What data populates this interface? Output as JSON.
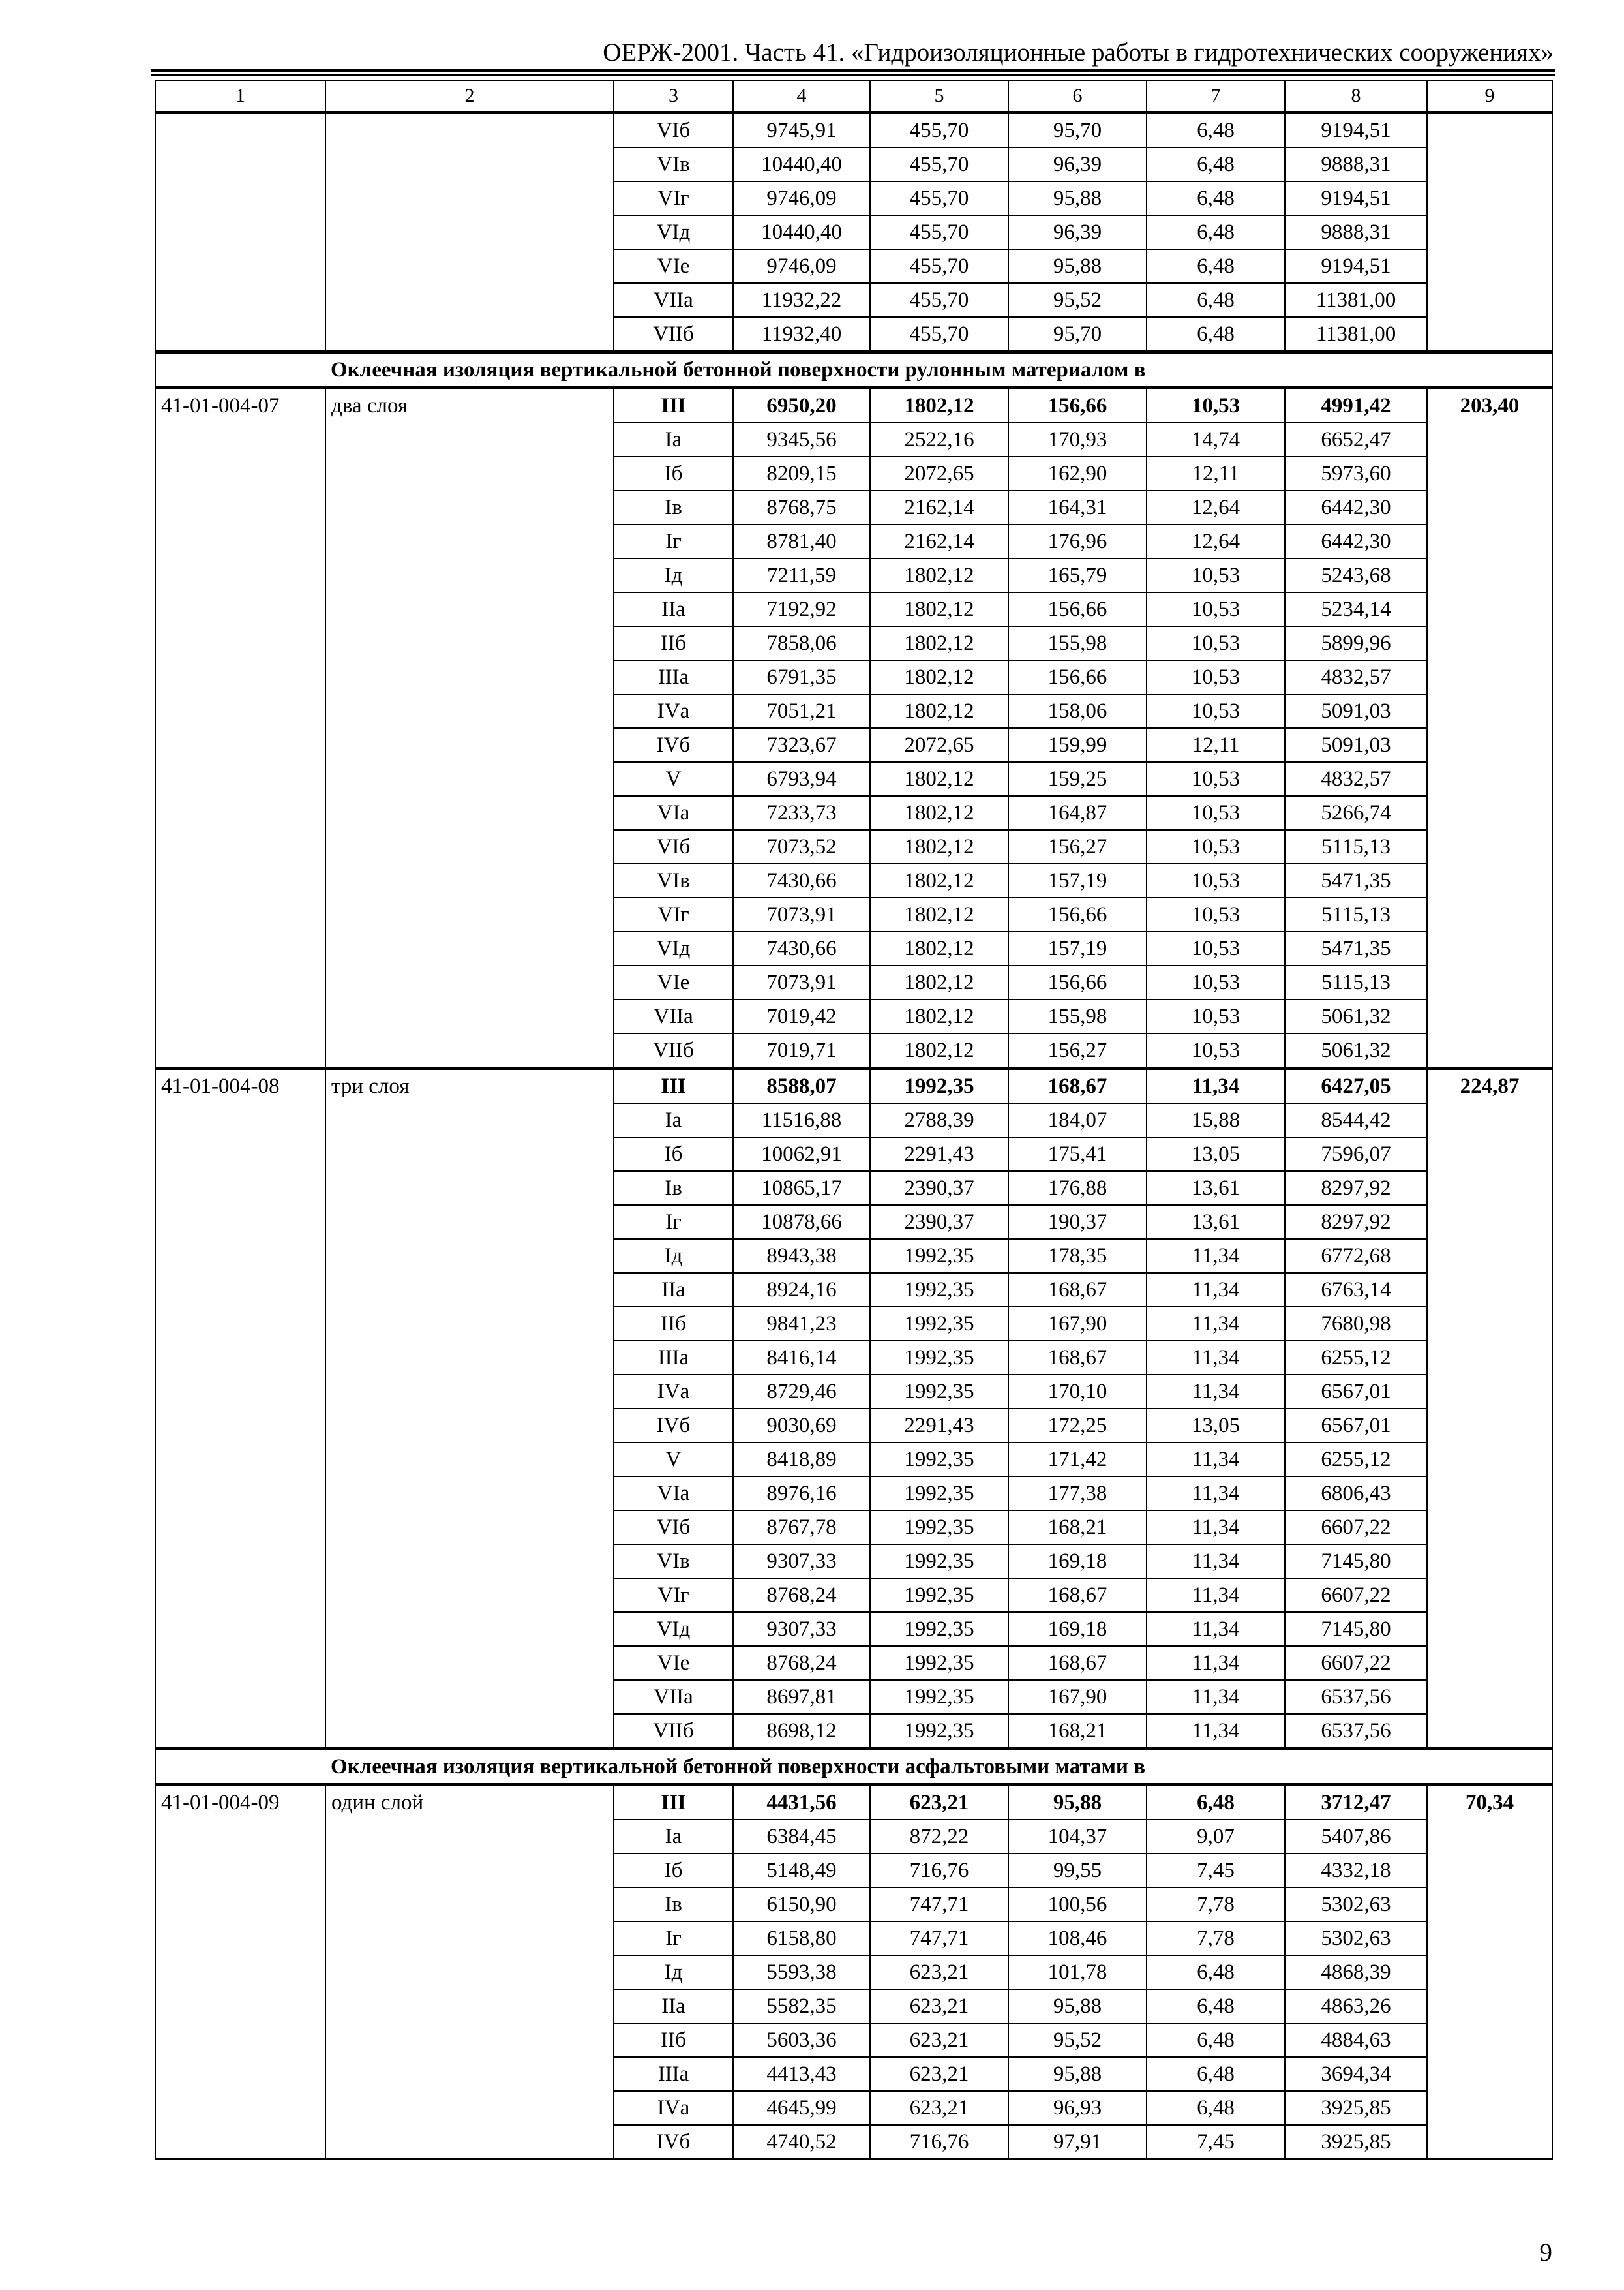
{
  "header": {
    "title": "ОЕРЖ-2001. Часть 41. «Гидроизоляционные работы в гидротехнических сооружениях»"
  },
  "table": {
    "columns": [
      "1",
      "2",
      "3",
      "4",
      "5",
      "6",
      "7",
      "8",
      "9"
    ],
    "sections": [
      {
        "type": "group",
        "code": "",
        "name": "",
        "total": "",
        "rows": [
          [
            "VIб",
            "9745,91",
            "455,70",
            "95,70",
            "6,48",
            "9194,51"
          ],
          [
            "VIв",
            "10440,40",
            "455,70",
            "96,39",
            "6,48",
            "9888,31"
          ],
          [
            "VIг",
            "9746,09",
            "455,70",
            "95,88",
            "6,48",
            "9194,51"
          ],
          [
            "VIд",
            "10440,40",
            "455,70",
            "96,39",
            "6,48",
            "9888,31"
          ],
          [
            "VIе",
            "9746,09",
            "455,70",
            "95,88",
            "6,48",
            "9194,51"
          ],
          [
            "VIIа",
            "11932,22",
            "455,70",
            "95,52",
            "6,48",
            "11381,00"
          ],
          [
            "VIIб",
            "11932,40",
            "455,70",
            "95,70",
            "6,48",
            "11381,00"
          ]
        ]
      },
      {
        "type": "heading",
        "text": "Оклеечная изоляция вертикальной бетонной поверхности рулонным материалом в"
      },
      {
        "type": "group",
        "code": "41-01-004-07",
        "name": "два слоя",
        "total": "203,40",
        "rows": [
          [
            "III",
            "6950,20",
            "1802,12",
            "156,66",
            "10,53",
            "4991,42"
          ],
          [
            "Iа",
            "9345,56",
            "2522,16",
            "170,93",
            "14,74",
            "6652,47"
          ],
          [
            "Iб",
            "8209,15",
            "2072,65",
            "162,90",
            "12,11",
            "5973,60"
          ],
          [
            "Iв",
            "8768,75",
            "2162,14",
            "164,31",
            "12,64",
            "6442,30"
          ],
          [
            "Iг",
            "8781,40",
            "2162,14",
            "176,96",
            "12,64",
            "6442,30"
          ],
          [
            "Iд",
            "7211,59",
            "1802,12",
            "165,79",
            "10,53",
            "5243,68"
          ],
          [
            "IIа",
            "7192,92",
            "1802,12",
            "156,66",
            "10,53",
            "5234,14"
          ],
          [
            "IIб",
            "7858,06",
            "1802,12",
            "155,98",
            "10,53",
            "5899,96"
          ],
          [
            "IIIа",
            "6791,35",
            "1802,12",
            "156,66",
            "10,53",
            "4832,57"
          ],
          [
            "IVа",
            "7051,21",
            "1802,12",
            "158,06",
            "10,53",
            "5091,03"
          ],
          [
            "IVб",
            "7323,67",
            "2072,65",
            "159,99",
            "12,11",
            "5091,03"
          ],
          [
            "V",
            "6793,94",
            "1802,12",
            "159,25",
            "10,53",
            "4832,57"
          ],
          [
            "VIа",
            "7233,73",
            "1802,12",
            "164,87",
            "10,53",
            "5266,74"
          ],
          [
            "VIб",
            "7073,52",
            "1802,12",
            "156,27",
            "10,53",
            "5115,13"
          ],
          [
            "VIв",
            "7430,66",
            "1802,12",
            "157,19",
            "10,53",
            "5471,35"
          ],
          [
            "VIг",
            "7073,91",
            "1802,12",
            "156,66",
            "10,53",
            "5115,13"
          ],
          [
            "VIд",
            "7430,66",
            "1802,12",
            "157,19",
            "10,53",
            "5471,35"
          ],
          [
            "VIе",
            "7073,91",
            "1802,12",
            "156,66",
            "10,53",
            "5115,13"
          ],
          [
            "VIIа",
            "7019,42",
            "1802,12",
            "155,98",
            "10,53",
            "5061,32"
          ],
          [
            "VIIб",
            "7019,71",
            "1802,12",
            "156,27",
            "10,53",
            "5061,32"
          ]
        ]
      },
      {
        "type": "group",
        "code": "41-01-004-08",
        "name": "три слоя",
        "total": "224,87",
        "rows": [
          [
            "III",
            "8588,07",
            "1992,35",
            "168,67",
            "11,34",
            "6427,05"
          ],
          [
            "Iа",
            "11516,88",
            "2788,39",
            "184,07",
            "15,88",
            "8544,42"
          ],
          [
            "Iб",
            "10062,91",
            "2291,43",
            "175,41",
            "13,05",
            "7596,07"
          ],
          [
            "Iв",
            "10865,17",
            "2390,37",
            "176,88",
            "13,61",
            "8297,92"
          ],
          [
            "Iг",
            "10878,66",
            "2390,37",
            "190,37",
            "13,61",
            "8297,92"
          ],
          [
            "Iд",
            "8943,38",
            "1992,35",
            "178,35",
            "11,34",
            "6772,68"
          ],
          [
            "IIа",
            "8924,16",
            "1992,35",
            "168,67",
            "11,34",
            "6763,14"
          ],
          [
            "IIб",
            "9841,23",
            "1992,35",
            "167,90",
            "11,34",
            "7680,98"
          ],
          [
            "IIIа",
            "8416,14",
            "1992,35",
            "168,67",
            "11,34",
            "6255,12"
          ],
          [
            "IVа",
            "8729,46",
            "1992,35",
            "170,10",
            "11,34",
            "6567,01"
          ],
          [
            "IVб",
            "9030,69",
            "2291,43",
            "172,25",
            "13,05",
            "6567,01"
          ],
          [
            "V",
            "8418,89",
            "1992,35",
            "171,42",
            "11,34",
            "6255,12"
          ],
          [
            "VIа",
            "8976,16",
            "1992,35",
            "177,38",
            "11,34",
            "6806,43"
          ],
          [
            "VIб",
            "8767,78",
            "1992,35",
            "168,21",
            "11,34",
            "6607,22"
          ],
          [
            "VIв",
            "9307,33",
            "1992,35",
            "169,18",
            "11,34",
            "7145,80"
          ],
          [
            "VIг",
            "8768,24",
            "1992,35",
            "168,67",
            "11,34",
            "6607,22"
          ],
          [
            "VIд",
            "9307,33",
            "1992,35",
            "169,18",
            "11,34",
            "7145,80"
          ],
          [
            "VIе",
            "8768,24",
            "1992,35",
            "168,67",
            "11,34",
            "6607,22"
          ],
          [
            "VIIа",
            "8697,81",
            "1992,35",
            "167,90",
            "11,34",
            "6537,56"
          ],
          [
            "VIIб",
            "8698,12",
            "1992,35",
            "168,21",
            "11,34",
            "6537,56"
          ]
        ]
      },
      {
        "type": "heading",
        "text": "Оклеечная изоляция вертикальной бетонной поверхности асфальтовыми матами в"
      },
      {
        "type": "group",
        "code": "41-01-004-09",
        "name": "один слой",
        "total": "70,34",
        "rows": [
          [
            "III",
            "4431,56",
            "623,21",
            "95,88",
            "6,48",
            "3712,47"
          ],
          [
            "Iа",
            "6384,45",
            "872,22",
            "104,37",
            "9,07",
            "5407,86"
          ],
          [
            "Iб",
            "5148,49",
            "716,76",
            "99,55",
            "7,45",
            "4332,18"
          ],
          [
            "Iв",
            "6150,90",
            "747,71",
            "100,56",
            "7,78",
            "5302,63"
          ],
          [
            "Iг",
            "6158,80",
            "747,71",
            "108,46",
            "7,78",
            "5302,63"
          ],
          [
            "Iд",
            "5593,38",
            "623,21",
            "101,78",
            "6,48",
            "4868,39"
          ],
          [
            "IIа",
            "5582,35",
            "623,21",
            "95,88",
            "6,48",
            "4863,26"
          ],
          [
            "IIб",
            "5603,36",
            "623,21",
            "95,52",
            "6,48",
            "4884,63"
          ],
          [
            "IIIа",
            "4413,43",
            "623,21",
            "95,88",
            "6,48",
            "3694,34"
          ],
          [
            "IVа",
            "4645,99",
            "623,21",
            "96,93",
            "6,48",
            "3925,85"
          ],
          [
            "IVб",
            "4740,52",
            "716,76",
            "97,91",
            "7,45",
            "3925,85"
          ]
        ]
      }
    ]
  },
  "footer": {
    "page_number": "9"
  }
}
